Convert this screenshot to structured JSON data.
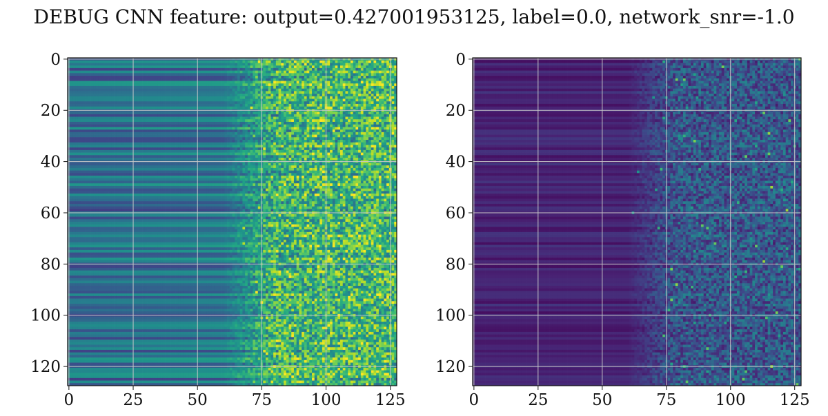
{
  "figure": {
    "title": "DEBUG CNN feature: output=0.427001953125, label=0.0, network_snr=-1.0"
  },
  "chart_data": [
    {
      "type": "heatmap",
      "title": "",
      "xlabel": "",
      "ylabel": "",
      "xlim": [
        0,
        127
      ],
      "ylim": [
        127,
        0
      ],
      "xticks": [
        0,
        25,
        50,
        75,
        100,
        125
      ],
      "yticks": [
        0,
        20,
        40,
        60,
        80,
        100,
        120
      ],
      "grid": true,
      "colormap": "viridis",
      "shape": [
        128,
        128
      ],
      "description_of_values": "approximate intensity; smooth horizontal bands on left (cols 0-70), noisy speckled on right (cols 75-127)",
      "band_level": "medium",
      "noise_level": "high",
      "seed": 7
    },
    {
      "type": "heatmap",
      "title": "",
      "xlabel": "",
      "ylabel": "",
      "xlim": [
        0,
        127
      ],
      "ylim": [
        127,
        0
      ],
      "xticks": [
        0,
        25,
        50,
        75,
        100,
        125
      ],
      "yticks": [
        0,
        20,
        40,
        60,
        80,
        100,
        120
      ],
      "grid": true,
      "colormap": "viridis",
      "shape": [
        128,
        128
      ],
      "band_level": "low",
      "noise_level": "medium",
      "seed": 19
    }
  ]
}
